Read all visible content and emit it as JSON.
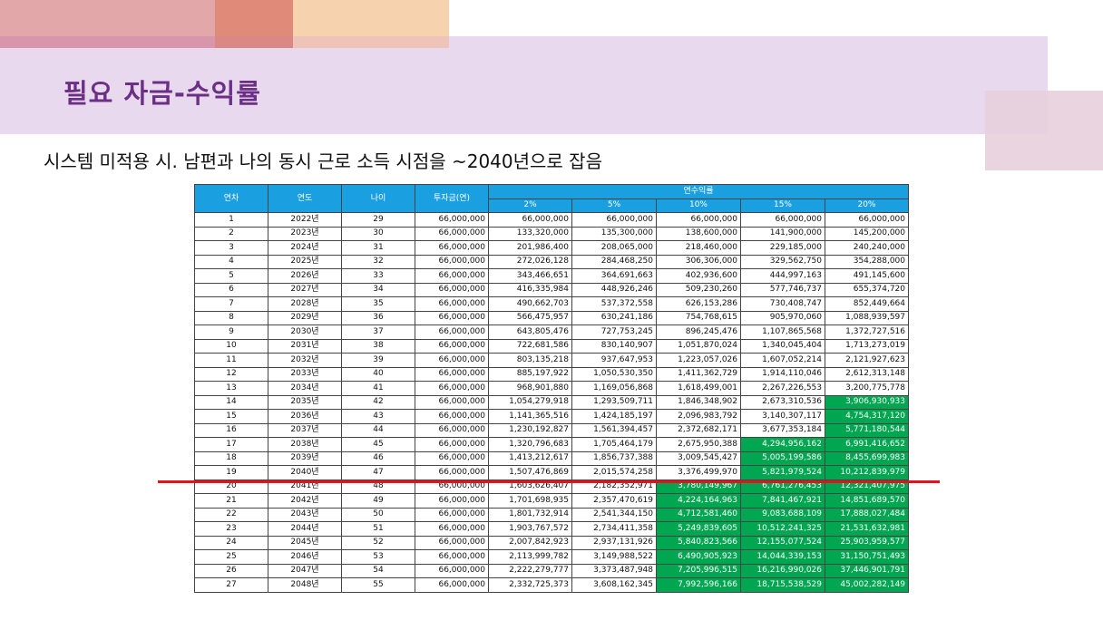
{
  "title": "필요 자금-수익률",
  "subtitle": "시스템 미적용 시. 남편과 나의 동시 근로 소득 시점을 ~2040년으로 잡음",
  "colors": {
    "header_bg": "#1a9fe0",
    "highlight": "#00a650",
    "title": "#6b2f86",
    "marker_line": "#e0141e"
  },
  "table": {
    "headers": {
      "year_no": "연차",
      "year": "연도",
      "age": "나이",
      "investment": "투자금(연)",
      "return_rate": "연수익률"
    },
    "rates": [
      "2%",
      "5%",
      "10%",
      "15%",
      "20%"
    ],
    "rows": [
      [
        "1",
        "2022년",
        "29",
        "66,000,000",
        "66,000,000",
        "66,000,000",
        "66,000,000",
        "66,000,000",
        "66,000,000"
      ],
      [
        "2",
        "2023년",
        "30",
        "66,000,000",
        "133,320,000",
        "135,300,000",
        "138,600,000",
        "141,900,000",
        "145,200,000"
      ],
      [
        "3",
        "2024년",
        "31",
        "66,000,000",
        "201,986,400",
        "208,065,000",
        "218,460,000",
        "229,185,000",
        "240,240,000"
      ],
      [
        "4",
        "2025년",
        "32",
        "66,000,000",
        "272,026,128",
        "284,468,250",
        "306,306,000",
        "329,562,750",
        "354,288,000"
      ],
      [
        "5",
        "2026년",
        "33",
        "66,000,000",
        "343,466,651",
        "364,691,663",
        "402,936,600",
        "444,997,163",
        "491,145,600"
      ],
      [
        "6",
        "2027년",
        "34",
        "66,000,000",
        "416,335,984",
        "448,926,246",
        "509,230,260",
        "577,746,737",
        "655,374,720"
      ],
      [
        "7",
        "2028년",
        "35",
        "66,000,000",
        "490,662,703",
        "537,372,558",
        "626,153,286",
        "730,408,747",
        "852,449,664"
      ],
      [
        "8",
        "2029년",
        "36",
        "66,000,000",
        "566,475,957",
        "630,241,186",
        "754,768,615",
        "905,970,060",
        "1,088,939,597"
      ],
      [
        "9",
        "2030년",
        "37",
        "66,000,000",
        "643,805,476",
        "727,753,245",
        "896,245,476",
        "1,107,865,568",
        "1,372,727,516"
      ],
      [
        "10",
        "2031년",
        "38",
        "66,000,000",
        "722,681,586",
        "830,140,907",
        "1,051,870,024",
        "1,340,045,404",
        "1,713,273,019"
      ],
      [
        "11",
        "2032년",
        "39",
        "66,000,000",
        "803,135,218",
        "937,647,953",
        "1,223,057,026",
        "1,607,052,214",
        "2,121,927,623"
      ],
      [
        "12",
        "2033년",
        "40",
        "66,000,000",
        "885,197,922",
        "1,050,530,350",
        "1,411,362,729",
        "1,914,110,046",
        "2,612,313,148"
      ],
      [
        "13",
        "2034년",
        "41",
        "66,000,000",
        "968,901,880",
        "1,169,056,868",
        "1,618,499,001",
        "2,267,226,553",
        "3,200,775,778"
      ],
      [
        "14",
        "2035년",
        "42",
        "66,000,000",
        "1,054,279,918",
        "1,293,509,711",
        "1,846,348,902",
        "2,673,310,536",
        "3,906,930,933"
      ],
      [
        "15",
        "2036년",
        "43",
        "66,000,000",
        "1,141,365,516",
        "1,424,185,197",
        "2,096,983,792",
        "3,140,307,117",
        "4,754,317,120"
      ],
      [
        "16",
        "2037년",
        "44",
        "66,000,000",
        "1,230,192,827",
        "1,561,394,457",
        "2,372,682,171",
        "3,677,353,184",
        "5,771,180,544"
      ],
      [
        "17",
        "2038년",
        "45",
        "66,000,000",
        "1,320,796,683",
        "1,705,464,179",
        "2,675,950,388",
        "4,294,956,162",
        "6,991,416,652"
      ],
      [
        "18",
        "2039년",
        "46",
        "66,000,000",
        "1,413,212,617",
        "1,856,737,388",
        "3,009,545,427",
        "5,005,199,586",
        "8,455,699,983"
      ],
      [
        "19",
        "2040년",
        "47",
        "66,000,000",
        "1,507,476,869",
        "2,015,574,258",
        "3,376,499,970",
        "5,821,979,524",
        "10,212,839,979"
      ],
      [
        "20",
        "2041년",
        "48",
        "66,000,000",
        "1,603,626,407",
        "2,182,352,971",
        "3,780,149,967",
        "6,761,276,453",
        "12,321,407,975"
      ],
      [
        "21",
        "2042년",
        "49",
        "66,000,000",
        "1,701,698,935",
        "2,357,470,619",
        "4,224,164,963",
        "7,841,467,921",
        "14,851,689,570"
      ],
      [
        "22",
        "2043년",
        "50",
        "66,000,000",
        "1,801,732,914",
        "2,541,344,150",
        "4,712,581,460",
        "9,083,688,109",
        "17,888,027,484"
      ],
      [
        "23",
        "2044년",
        "51",
        "66,000,000",
        "1,903,767,572",
        "2,734,411,358",
        "5,249,839,605",
        "10,512,241,325",
        "21,531,632,981"
      ],
      [
        "24",
        "2045년",
        "52",
        "66,000,000",
        "2,007,842,923",
        "2,937,131,926",
        "5,840,823,566",
        "12,155,077,524",
        "25,903,959,577"
      ],
      [
        "25",
        "2046년",
        "53",
        "66,000,000",
        "2,113,999,782",
        "3,149,988,522",
        "6,490,905,923",
        "14,044,339,153",
        "31,150,751,493"
      ],
      [
        "26",
        "2047년",
        "54",
        "66,000,000",
        "2,222,279,777",
        "3,373,487,948",
        "7,205,996,515",
        "16,216,990,026",
        "37,446,901,791"
      ],
      [
        "27",
        "2048년",
        "55",
        "66,000,000",
        "2,332,725,373",
        "3,608,162,345",
        "7,992,596,166",
        "18,715,538,529",
        "45,002,282,149"
      ]
    ]
  }
}
